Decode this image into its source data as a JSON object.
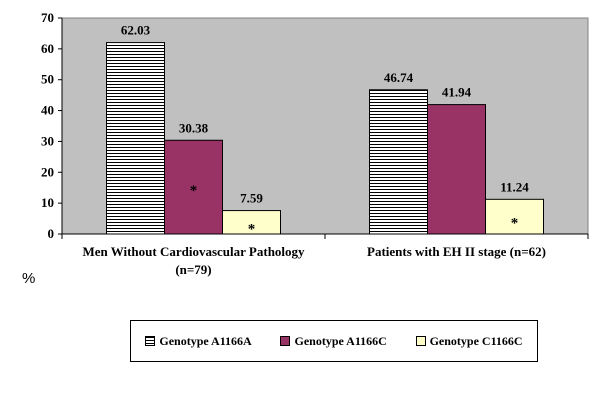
{
  "chart_data": {
    "type": "bar",
    "title": "",
    "xlabel": "",
    "ylabel": "%",
    "ylim": [
      0,
      70
    ],
    "yticks": [
      0,
      10,
      20,
      30,
      40,
      50,
      60,
      70
    ],
    "grid": false,
    "legend_position": "bottom",
    "categories": [
      [
        "Men Without Cardiovascular Pathology",
        "(n=79)"
      ],
      [
        "Patients with EH II stage (n=62)"
      ]
    ],
    "series": [
      {
        "name": "Genotype A1166A",
        "values": [
          62.03,
          46.74
        ],
        "labels": [
          "62.03",
          "46.74"
        ],
        "color": "#ffffff",
        "pattern": "horizontal-stripes",
        "marks": [
          "",
          ""
        ]
      },
      {
        "name": "Genotype A1166C",
        "values": [
          30.38,
          41.94
        ],
        "labels": [
          "30.38",
          "41.94"
        ],
        "color": "#993366",
        "pattern": "solid",
        "marks": [
          "*",
          ""
        ]
      },
      {
        "name": "Genotype C1166C",
        "values": [
          7.59,
          11.24
        ],
        "labels": [
          "7.59",
          "11.24"
        ],
        "color": "#ffffcc",
        "pattern": "solid",
        "marks": [
          "*",
          "*"
        ]
      }
    ],
    "plot_background": "#c0c0c0"
  }
}
